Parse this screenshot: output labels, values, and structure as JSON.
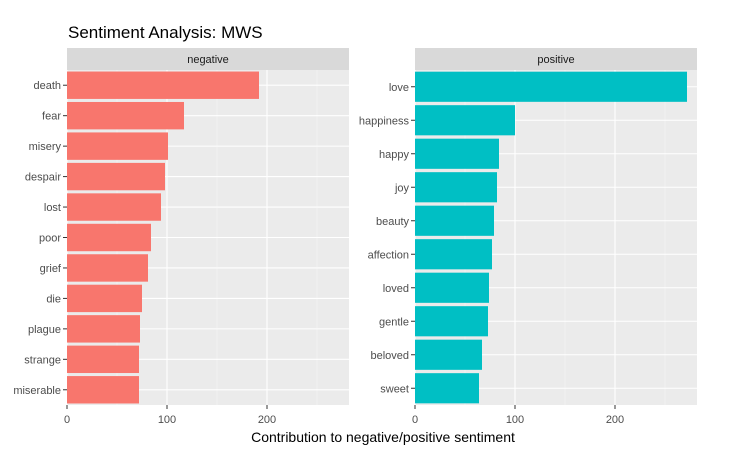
{
  "chart_data": {
    "type": "bar",
    "orientation": "horizontal",
    "title": "Sentiment Analysis: MWS",
    "xlabel": "Contribution to negative/positive sentiment",
    "ylabel": "",
    "xlim": [
      0,
      282
    ],
    "x_ticks": [
      "0",
      "100",
      "200"
    ],
    "grid": true,
    "legend": "none",
    "panels": [
      {
        "strip": "negative",
        "color": "#F8766D",
        "categories": [
          "death",
          "fear",
          "misery",
          "despair",
          "lost",
          "poor",
          "grief",
          "die",
          "plague",
          "strange",
          "miserable"
        ],
        "values": [
          192,
          117,
          101,
          98,
          94,
          84,
          81,
          75,
          73,
          72,
          72
        ]
      },
      {
        "strip": "positive",
        "color": "#00BFC4",
        "categories": [
          "love",
          "happiness",
          "happy",
          "joy",
          "beauty",
          "affection",
          "loved",
          "gentle",
          "beloved",
          "sweet"
        ],
        "values": [
          272,
          100,
          84,
          82,
          79,
          77,
          74,
          73,
          67,
          64
        ]
      }
    ]
  }
}
